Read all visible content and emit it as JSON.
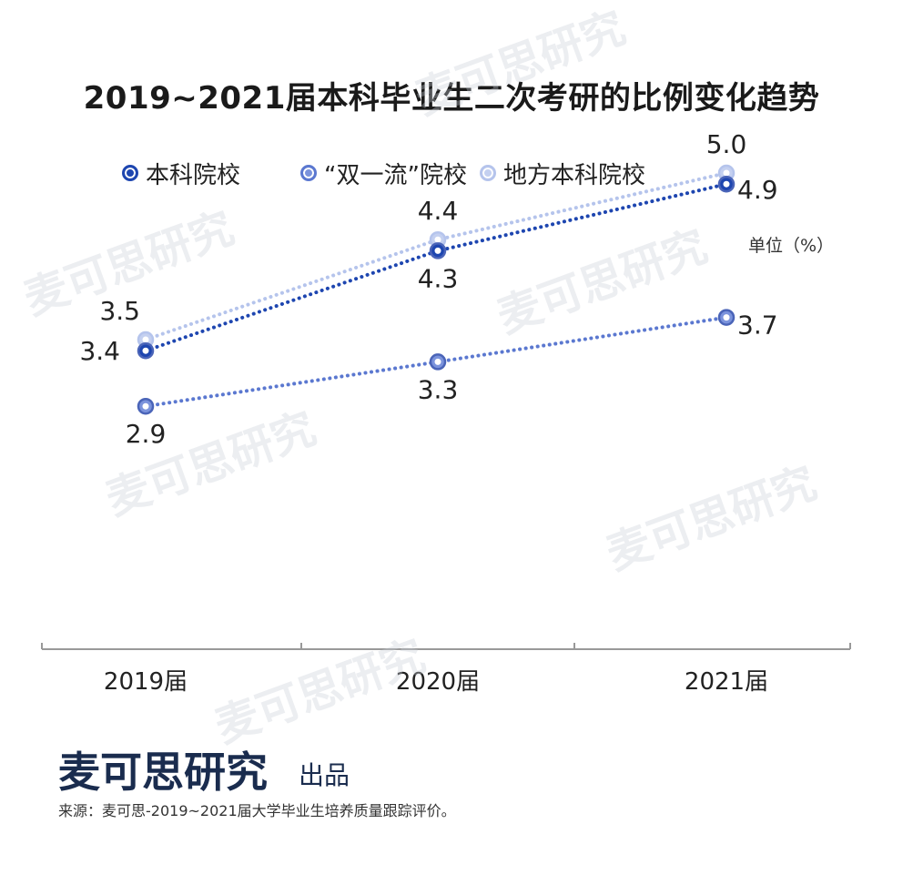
{
  "title": "2019~2021届本科毕业生二次考研的比例变化趋势",
  "unit_label": "单位（%）",
  "brand": "麦可思研究",
  "brand_suffix": "出品",
  "source": "来源：麦可思-2019~2021届大学毕业生培养质量跟踪评价。",
  "watermark": "麦可思研究",
  "chart_data": {
    "type": "line",
    "title": "2019~2021届本科毕业生二次考研的比例变化趋势",
    "categories": [
      "2019届",
      "2020届",
      "2021届"
    ],
    "series": [
      {
        "name": "本科院校",
        "values": [
          3.4,
          4.3,
          4.9
        ],
        "color": "#1e46b0",
        "fill": "#1e46b0",
        "stroke": "#1e46b0"
      },
      {
        "name": "“双一流”院校",
        "values": [
          2.9,
          3.3,
          3.7
        ],
        "color": "#5b78d0",
        "fill": "#7b93dc",
        "stroke": "#5b78d0"
      },
      {
        "name": "地方本科院校",
        "values": [
          3.5,
          4.4,
          5.0
        ],
        "color": "#a9b9e8",
        "fill": "#c4d0f0",
        "stroke": "#b5c4ec"
      }
    ],
    "ylim": [
      0,
      8
    ],
    "grid": false,
    "legend_position": "top"
  }
}
